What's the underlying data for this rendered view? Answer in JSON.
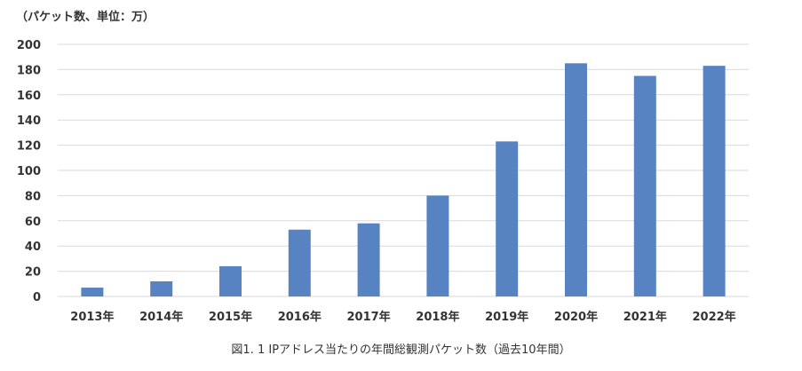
{
  "chart_data": {
    "type": "bar",
    "unit_label": "（パケット数、単位：万）",
    "categories": [
      "2013年",
      "2014年",
      "2015年",
      "2016年",
      "2017年",
      "2018年",
      "2019年",
      "2020年",
      "2021年",
      "2022年"
    ],
    "values": [
      7,
      12,
      24,
      53,
      58,
      80,
      123,
      185,
      175,
      183
    ],
    "ylim": [
      0,
      200
    ],
    "yticks": [
      "0",
      "20",
      "40",
      "60",
      "80",
      "100",
      "120",
      "140",
      "160",
      "180",
      "200"
    ],
    "grid": true,
    "bar_color": "#5883C2",
    "grid_color": "#d9d9d9",
    "caption": "図1. 1 IPアドレス当たりの年間総観測パケット数（過去10年間）"
  }
}
